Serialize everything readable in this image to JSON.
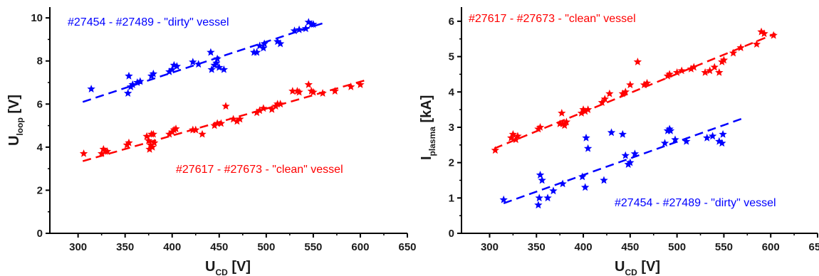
{
  "chart_data": [
    {
      "type": "scatter",
      "xlabel": {
        "main": "U",
        "sub": "CD",
        "unit": " [V]"
      },
      "ylabel": {
        "main": "U",
        "sub": "loop",
        "unit": " [V]"
      },
      "xlim": [
        270,
        650
      ],
      "ylim": [
        0,
        10.5
      ],
      "xticks": [
        300,
        350,
        400,
        450,
        500,
        550,
        600,
        650
      ],
      "yticks": [
        0,
        2,
        4,
        6,
        8,
        10
      ],
      "annotations": [
        {
          "text": "#27454 - #27489 - \"dirty\" vessel",
          "color": "#0000ff"
        },
        {
          "text": "#27617 - #27673 - \"clean\" vessel",
          "color": "#ff0000"
        }
      ],
      "series": [
        {
          "color": "#0000ff",
          "points": [
            [
              314,
              6.7
            ],
            [
              354,
              7.3
            ],
            [
              353,
              6.5
            ],
            [
              356,
              6.8
            ],
            [
              358,
              6.9
            ],
            [
              363,
              7.0
            ],
            [
              366,
              7.05
            ],
            [
              378,
              7.3
            ],
            [
              380,
              7.4
            ],
            [
              397,
              7.5
            ],
            [
              400,
              7.6
            ],
            [
              402,
              7.8
            ],
            [
              405,
              7.75
            ],
            [
              422,
              7.95
            ],
            [
              428,
              7.85
            ],
            [
              441,
              8.4
            ],
            [
              442,
              7.6
            ],
            [
              445,
              7.8
            ],
            [
              447,
              7.9
            ],
            [
              448,
              8.1
            ],
            [
              450,
              7.7
            ],
            [
              455,
              7.6
            ],
            [
              487,
              8.4
            ],
            [
              490,
              8.4
            ],
            [
              493,
              8.7
            ],
            [
              497,
              8.6
            ],
            [
              498,
              8.8
            ],
            [
              512,
              8.9
            ],
            [
              515,
              8.8
            ],
            [
              530,
              9.4
            ],
            [
              535,
              9.45
            ],
            [
              542,
              9.5
            ],
            [
              545,
              9.8
            ],
            [
              548,
              9.7
            ],
            [
              550,
              9.7
            ]
          ],
          "fit": [
            [
              305,
              6.1
            ],
            [
              560,
              9.75
            ]
          ]
        },
        {
          "color": "#ff0000",
          "points": [
            [
              306,
              3.7
            ],
            [
              325,
              3.7
            ],
            [
              327,
              3.9
            ],
            [
              329,
              3.8
            ],
            [
              331,
              3.8
            ],
            [
              352,
              4.1
            ],
            [
              354,
              4.2
            ],
            [
              373,
              4.5
            ],
            [
              375,
              4.3
            ],
            [
              376,
              3.9
            ],
            [
              377,
              4.1
            ],
            [
              378,
              4.6
            ],
            [
              379,
              4.0
            ],
            [
              380,
              4.6
            ],
            [
              381,
              4.2
            ],
            [
              397,
              4.6
            ],
            [
              400,
              4.7
            ],
            [
              402,
              4.8
            ],
            [
              404,
              4.85
            ],
            [
              422,
              4.8
            ],
            [
              425,
              4.8
            ],
            [
              432,
              4.6
            ],
            [
              445,
              5.0
            ],
            [
              448,
              5.1
            ],
            [
              452,
              5.1
            ],
            [
              457,
              5.9
            ],
            [
              465,
              5.3
            ],
            [
              469,
              5.2
            ],
            [
              472,
              5.3
            ],
            [
              490,
              5.6
            ],
            [
              493,
              5.7
            ],
            [
              497,
              5.8
            ],
            [
              506,
              5.75
            ],
            [
              510,
              5.9
            ],
            [
              512,
              6.0
            ],
            [
              515,
              6.0
            ],
            [
              528,
              6.6
            ],
            [
              533,
              6.6
            ],
            [
              535,
              6.55
            ],
            [
              545,
              6.9
            ],
            [
              548,
              6.6
            ],
            [
              550,
              6.55
            ],
            [
              560,
              6.5
            ],
            [
              573,
              6.6
            ],
            [
              590,
              6.8
            ],
            [
              600,
              6.9
            ]
          ],
          "fit": [
            [
              305,
              3.35
            ],
            [
              605,
              7.1
            ]
          ]
        }
      ]
    },
    {
      "type": "scatter",
      "xlabel": {
        "main": "U",
        "sub": "CD",
        "unit": " [V]"
      },
      "ylabel": {
        "main": "I",
        "sub": "plasma",
        "unit": " [kA]"
      },
      "xlim": [
        270,
        650
      ],
      "ylim": [
        0,
        6.4
      ],
      "xticks": [
        300,
        350,
        400,
        450,
        500,
        550,
        600,
        650
      ],
      "yticks": [
        0,
        1,
        2,
        3,
        4,
        5,
        6
      ],
      "annotations": [
        {
          "text": "#27617 - #27673 - \"clean\" vessel",
          "color": "#ff0000"
        },
        {
          "text": "#27454 - #27489 - \"dirty\" vessel",
          "color": "#0000ff"
        }
      ],
      "series": [
        {
          "color": "#ff0000",
          "points": [
            [
              306,
              2.35
            ],
            [
              323,
              2.7
            ],
            [
              325,
              2.8
            ],
            [
              328,
              2.65
            ],
            [
              330,
              2.75
            ],
            [
              352,
              2.95
            ],
            [
              354,
              3.0
            ],
            [
              375,
              3.1
            ],
            [
              377,
              3.4
            ],
            [
              378,
              3.1
            ],
            [
              380,
              3.05
            ],
            [
              382,
              3.15
            ],
            [
              398,
              3.4
            ],
            [
              400,
              3.5
            ],
            [
              402,
              3.45
            ],
            [
              405,
              3.5
            ],
            [
              420,
              3.7
            ],
            [
              423,
              3.8
            ],
            [
              428,
              3.95
            ],
            [
              442,
              3.95
            ],
            [
              445,
              4.0
            ],
            [
              450,
              4.2
            ],
            [
              458,
              4.85
            ],
            [
              465,
              4.2
            ],
            [
              468,
              4.25
            ],
            [
              490,
              4.45
            ],
            [
              492,
              4.5
            ],
            [
              500,
              4.55
            ],
            [
              505,
              4.6
            ],
            [
              515,
              4.65
            ],
            [
              518,
              4.7
            ],
            [
              530,
              4.55
            ],
            [
              535,
              4.6
            ],
            [
              540,
              4.7
            ],
            [
              545,
              4.55
            ],
            [
              548,
              4.85
            ],
            [
              550,
              4.9
            ],
            [
              560,
              5.1
            ],
            [
              568,
              5.25
            ],
            [
              585,
              5.35
            ],
            [
              590,
              5.7
            ],
            [
              593,
              5.65
            ],
            [
              603,
              5.6
            ]
          ],
          "fit": [
            [
              305,
              2.4
            ],
            [
              605,
              5.65
            ]
          ]
        },
        {
          "color": "#0000ff",
          "points": [
            [
              315,
              0.95
            ],
            [
              352,
              0.8
            ],
            [
              353,
              1.0
            ],
            [
              354,
              1.65
            ],
            [
              356,
              1.5
            ],
            [
              362,
              1.0
            ],
            [
              368,
              1.2
            ],
            [
              378,
              1.4
            ],
            [
              399,
              1.6
            ],
            [
              402,
              1.3
            ],
            [
              403,
              2.7
            ],
            [
              405,
              2.4
            ],
            [
              422,
              1.5
            ],
            [
              430,
              2.85
            ],
            [
              442,
              2.8
            ],
            [
              445,
              2.2
            ],
            [
              448,
              1.95
            ],
            [
              450,
              2.0
            ],
            [
              455,
              2.25
            ],
            [
              487,
              2.55
            ],
            [
              490,
              2.9
            ],
            [
              492,
              2.95
            ],
            [
              493,
              2.9
            ],
            [
              498,
              2.65
            ],
            [
              510,
              2.6
            ],
            [
              532,
              2.7
            ],
            [
              538,
              2.75
            ],
            [
              545,
              2.6
            ],
            [
              548,
              2.55
            ],
            [
              549,
              2.8
            ]
          ],
          "fit": [
            [
              315,
              0.85
            ],
            [
              570,
              3.25
            ]
          ]
        }
      ]
    }
  ]
}
